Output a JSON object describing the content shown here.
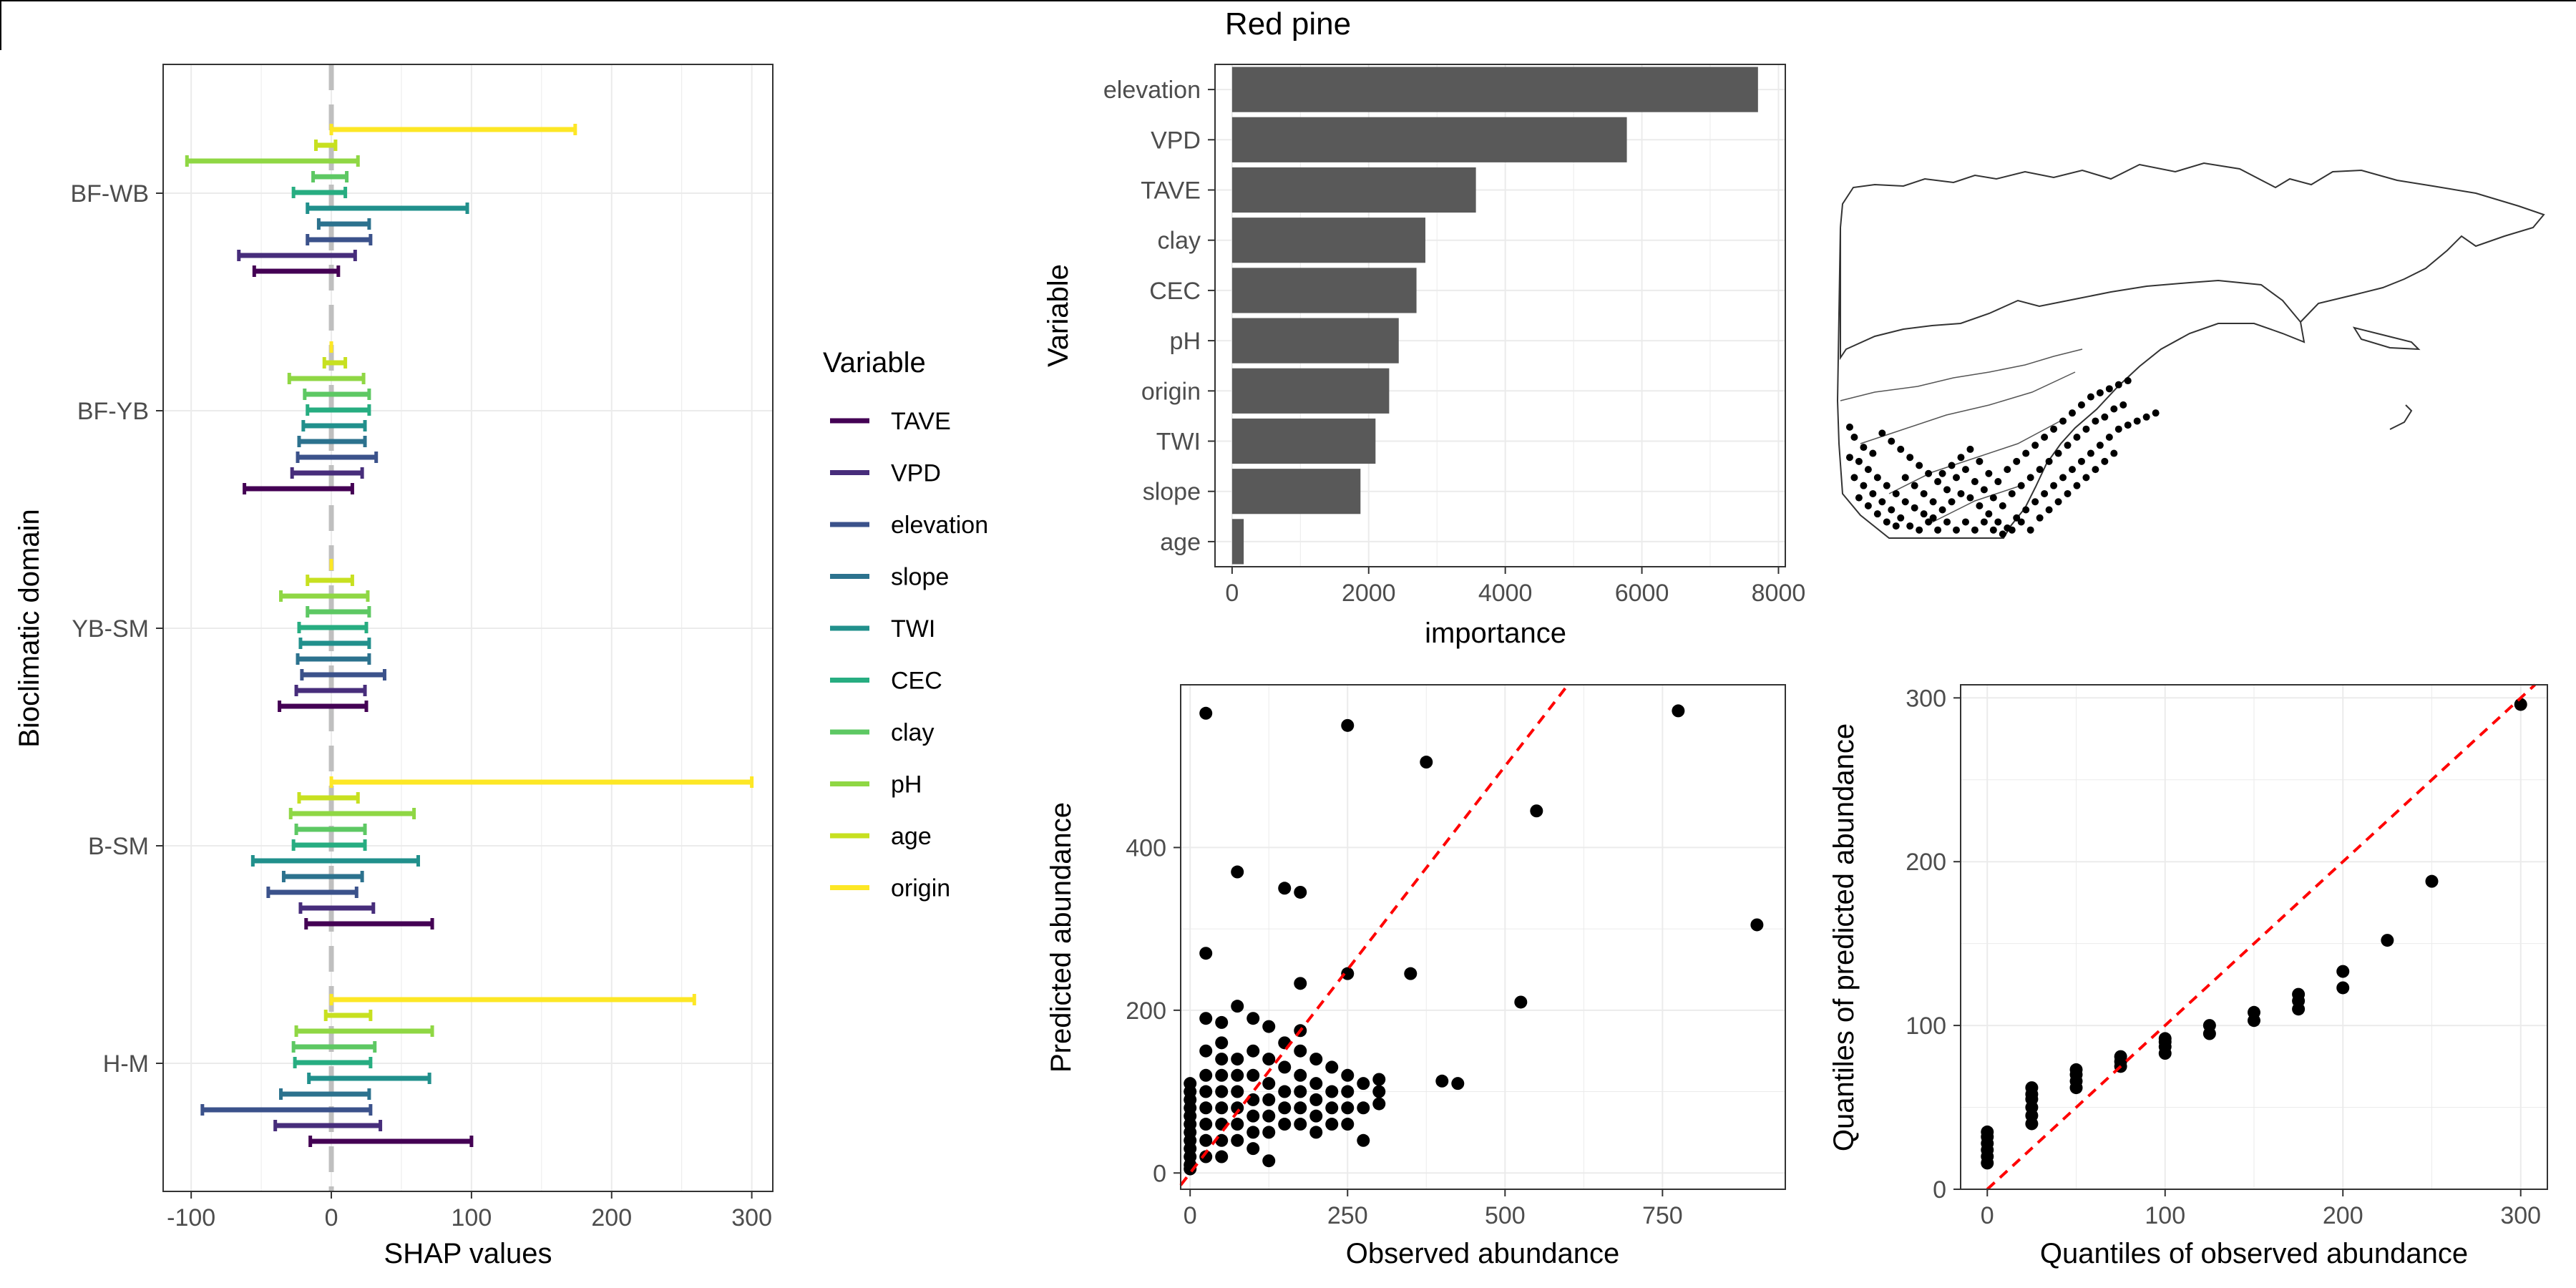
{
  "figure_title": "Red pine",
  "colors": {
    "TAVE": "#440154",
    "VPD": "#472D7B",
    "elevation": "#3B528B",
    "slope": "#2C728E",
    "TWI": "#21908C",
    "CEC": "#27AD81",
    "clay": "#5DC863",
    "pH": "#8FD744",
    "age": "#C7E020",
    "origin": "#FDE725",
    "bar": "#595959",
    "refline": "#FF0000",
    "zero_line": "#BFBFBF",
    "grid": "#EBEBEB"
  },
  "chart_data": [
    {
      "id": "shap",
      "type": "errorbar",
      "title": "",
      "xlabel": "SHAP values",
      "ylabel": "Bioclimatic domain",
      "xlim": [
        -120,
        315
      ],
      "xticks": [
        -100,
        0,
        100,
        200,
        300
      ],
      "categories": [
        "BF-WB",
        "BF-YB",
        "YB-SM",
        "B-SM",
        "H-M"
      ],
      "legend_title": "Variable",
      "legend": [
        "TAVE",
        "VPD",
        "elevation",
        "slope",
        "TWI",
        "CEC",
        "clay",
        "pH",
        "age",
        "origin"
      ],
      "series": [
        {
          "name": "TAVE",
          "ranges": [
            [
              -55,
              5
            ],
            [
              -62,
              15
            ],
            [
              -37,
              25
            ],
            [
              -18,
              72
            ],
            [
              -15,
              100
            ]
          ]
        },
        {
          "name": "VPD",
          "ranges": [
            [
              -66,
              17
            ],
            [
              -28,
              22
            ],
            [
              -25,
              24
            ],
            [
              -22,
              30
            ],
            [
              -40,
              35
            ]
          ]
        },
        {
          "name": "elevation",
          "ranges": [
            [
              -17,
              28
            ],
            [
              -24,
              32
            ],
            [
              -21,
              38
            ],
            [
              -45,
              18
            ],
            [
              -92,
              28
            ]
          ]
        },
        {
          "name": "slope",
          "ranges": [
            [
              -9,
              27
            ],
            [
              -23,
              24
            ],
            [
              -24,
              27
            ],
            [
              -34,
              22
            ],
            [
              -36,
              27
            ]
          ]
        },
        {
          "name": "TWI",
          "ranges": [
            [
              -17,
              97
            ],
            [
              -20,
              24
            ],
            [
              -22,
              27
            ],
            [
              -56,
              62
            ],
            [
              -16,
              70
            ]
          ]
        },
        {
          "name": "CEC",
          "ranges": [
            [
              -27,
              10
            ],
            [
              -17,
              27
            ],
            [
              -23,
              25
            ],
            [
              -27,
              24
            ],
            [
              -26,
              28
            ]
          ]
        },
        {
          "name": "clay",
          "ranges": [
            [
              -13,
              11
            ],
            [
              -19,
              27
            ],
            [
              -17,
              27
            ],
            [
              -25,
              24
            ],
            [
              -27,
              31
            ]
          ]
        },
        {
          "name": "pH",
          "ranges": [
            [
              -103,
              19
            ],
            [
              -30,
              23
            ],
            [
              -36,
              26
            ],
            [
              -29,
              59
            ],
            [
              -25,
              72
            ]
          ]
        },
        {
          "name": "age",
          "ranges": [
            [
              -11,
              3
            ],
            [
              -5,
              10
            ],
            [
              -17,
              15
            ],
            [
              -23,
              19
            ],
            [
              -4,
              28
            ]
          ]
        },
        {
          "name": "origin",
          "ranges": [
            [
              0,
              174
            ],
            [
              0,
              0
            ],
            [
              0,
              0
            ],
            [
              0,
              300
            ],
            [
              0,
              259
            ]
          ]
        }
      ]
    },
    {
      "id": "importance",
      "type": "bar",
      "orientation": "horizontal",
      "xlabel": "importance",
      "ylabel": "Variable",
      "xlim": [
        -250,
        8100
      ],
      "xticks": [
        0,
        2000,
        4000,
        6000,
        8000
      ],
      "categories": [
        "elevation",
        "VPD",
        "TAVE",
        "clay",
        "CEC",
        "pH",
        "origin",
        "TWI",
        "slope",
        "age"
      ],
      "values": [
        7700,
        5780,
        3570,
        2830,
        2700,
        2440,
        2300,
        2100,
        1880,
        170
      ]
    },
    {
      "id": "map",
      "type": "scatter",
      "title": "",
      "points": [
        [
          0.02,
          0.45
        ],
        [
          0.03,
          0.5
        ],
        [
          0.05,
          0.55
        ],
        [
          0.07,
          0.58
        ],
        [
          0.04,
          0.62
        ],
        [
          0.06,
          0.66
        ],
        [
          0.08,
          0.7
        ],
        [
          0.1,
          0.74
        ],
        [
          0.12,
          0.78
        ],
        [
          0.14,
          0.82
        ],
        [
          0.16,
          0.85
        ],
        [
          0.18,
          0.88
        ],
        [
          0.2,
          0.9
        ],
        [
          0.22,
          0.86
        ],
        [
          0.24,
          0.82
        ],
        [
          0.26,
          0.78
        ],
        [
          0.28,
          0.8
        ],
        [
          0.3,
          0.84
        ],
        [
          0.32,
          0.88
        ],
        [
          0.34,
          0.92
        ],
        [
          0.36,
          0.95
        ],
        [
          0.38,
          0.9
        ],
        [
          0.4,
          0.86
        ],
        [
          0.42,
          0.82
        ],
        [
          0.44,
          0.78
        ],
        [
          0.46,
          0.74
        ],
        [
          0.48,
          0.7
        ],
        [
          0.5,
          0.66
        ],
        [
          0.52,
          0.62
        ],
        [
          0.54,
          0.58
        ],
        [
          0.56,
          0.54
        ],
        [
          0.58,
          0.5
        ],
        [
          0.6,
          0.46
        ],
        [
          0.62,
          0.44
        ],
        [
          0.64,
          0.42
        ],
        [
          0.66,
          0.4
        ],
        [
          0.68,
          0.38
        ],
        [
          0.09,
          0.48
        ],
        [
          0.11,
          0.52
        ],
        [
          0.13,
          0.56
        ],
        [
          0.15,
          0.6
        ],
        [
          0.17,
          0.64
        ],
        [
          0.19,
          0.68
        ],
        [
          0.21,
          0.72
        ],
        [
          0.23,
          0.76
        ],
        [
          0.25,
          0.7
        ],
        [
          0.27,
          0.66
        ],
        [
          0.29,
          0.72
        ],
        [
          0.31,
          0.76
        ],
        [
          0.33,
          0.8
        ],
        [
          0.35,
          0.84
        ],
        [
          0.37,
          0.78
        ],
        [
          0.39,
          0.74
        ],
        [
          0.41,
          0.7
        ],
        [
          0.43,
          0.66
        ],
        [
          0.45,
          0.62
        ],
        [
          0.47,
          0.58
        ],
        [
          0.49,
          0.54
        ],
        [
          0.51,
          0.5
        ],
        [
          0.53,
          0.46
        ],
        [
          0.55,
          0.42
        ],
        [
          0.57,
          0.4
        ],
        [
          0.59,
          0.36
        ],
        [
          0.61,
          0.34
        ],
        [
          0.05,
          0.74
        ],
        [
          0.07,
          0.78
        ],
        [
          0.09,
          0.82
        ],
        [
          0.11,
          0.86
        ],
        [
          0.13,
          0.9
        ],
        [
          0.15,
          0.94
        ],
        [
          0.17,
          0.96
        ],
        [
          0.19,
          0.92
        ],
        [
          0.21,
          0.96
        ],
        [
          0.23,
          0.92
        ],
        [
          0.25,
          0.96
        ],
        [
          0.27,
          0.92
        ],
        [
          0.29,
          0.96
        ],
        [
          0.31,
          0.92
        ],
        [
          0.33,
          0.96
        ],
        [
          0.35,
          0.98
        ],
        [
          0.37,
          0.96
        ],
        [
          0.39,
          0.92
        ],
        [
          0.41,
          0.96
        ],
        [
          0.43,
          0.9
        ],
        [
          0.45,
          0.86
        ],
        [
          0.47,
          0.82
        ],
        [
          0.49,
          0.78
        ],
        [
          0.51,
          0.74
        ],
        [
          0.53,
          0.7
        ],
        [
          0.55,
          0.66
        ],
        [
          0.57,
          0.62
        ],
        [
          0.59,
          0.58
        ],
        [
          0.02,
          0.6
        ],
        [
          0.03,
          0.7
        ],
        [
          0.04,
          0.8
        ],
        [
          0.06,
          0.84
        ],
        [
          0.08,
          0.88
        ],
        [
          0.1,
          0.92
        ],
        [
          0.12,
          0.94
        ],
        [
          0.14,
          0.7
        ],
        [
          0.16,
          0.74
        ],
        [
          0.18,
          0.78
        ],
        [
          0.2,
          0.82
        ],
        [
          0.22,
          0.68
        ],
        [
          0.24,
          0.64
        ],
        [
          0.26,
          0.6
        ],
        [
          0.28,
          0.56
        ],
        [
          0.3,
          0.62
        ],
        [
          0.32,
          0.68
        ],
        [
          0.34,
          0.72
        ],
        [
          0.36,
          0.66
        ],
        [
          0.38,
          0.62
        ],
        [
          0.4,
          0.58
        ],
        [
          0.42,
          0.54
        ],
        [
          0.44,
          0.5
        ],
        [
          0.46,
          0.46
        ],
        [
          0.48,
          0.42
        ],
        [
          0.5,
          0.38
        ],
        [
          0.52,
          0.34
        ],
        [
          0.54,
          0.3
        ],
        [
          0.56,
          0.28
        ],
        [
          0.58,
          0.26
        ],
        [
          0.6,
          0.24
        ],
        [
          0.62,
          0.22
        ]
      ]
    },
    {
      "id": "pred_vs_obs",
      "type": "scatter",
      "xlabel": "Observed abundance",
      "ylabel": "Predicted abundance",
      "xlim": [
        -15,
        945
      ],
      "ylim": [
        -20,
        600
      ],
      "xticks": [
        0,
        250,
        500,
        750
      ],
      "yticks": [
        0,
        200,
        400
      ],
      "reference_line": "y = x",
      "points": [
        [
          25,
          565
        ],
        [
          250,
          550
        ],
        [
          775,
          568
        ],
        [
          375,
          505
        ],
        [
          550,
          445
        ],
        [
          75,
          370
        ],
        [
          150,
          350
        ],
        [
          175,
          345
        ],
        [
          900,
          305
        ],
        [
          25,
          270
        ],
        [
          250,
          245
        ],
        [
          350,
          245
        ],
        [
          525,
          210
        ],
        [
          175,
          233
        ],
        [
          400,
          113
        ],
        [
          425,
          110
        ],
        [
          0,
          110
        ],
        [
          0,
          100
        ],
        [
          0,
          90
        ],
        [
          0,
          80
        ],
        [
          0,
          70
        ],
        [
          0,
          60
        ],
        [
          0,
          50
        ],
        [
          0,
          40
        ],
        [
          0,
          30
        ],
        [
          0,
          20
        ],
        [
          0,
          10
        ],
        [
          0,
          5
        ],
        [
          25,
          190
        ],
        [
          25,
          150
        ],
        [
          25,
          120
        ],
        [
          25,
          100
        ],
        [
          25,
          80
        ],
        [
          25,
          60
        ],
        [
          25,
          40
        ],
        [
          25,
          20
        ],
        [
          50,
          185
        ],
        [
          50,
          160
        ],
        [
          50,
          140
        ],
        [
          50,
          120
        ],
        [
          50,
          100
        ],
        [
          50,
          80
        ],
        [
          50,
          60
        ],
        [
          50,
          40
        ],
        [
          50,
          20
        ],
        [
          75,
          205
        ],
        [
          75,
          140
        ],
        [
          75,
          120
        ],
        [
          75,
          100
        ],
        [
          75,
          80
        ],
        [
          75,
          60
        ],
        [
          75,
          40
        ],
        [
          100,
          190
        ],
        [
          100,
          150
        ],
        [
          100,
          120
        ],
        [
          100,
          90
        ],
        [
          100,
          70
        ],
        [
          100,
          50
        ],
        [
          100,
          30
        ],
        [
          125,
          180
        ],
        [
          125,
          140
        ],
        [
          125,
          110
        ],
        [
          125,
          90
        ],
        [
          125,
          70
        ],
        [
          125,
          50
        ],
        [
          125,
          15
        ],
        [
          150,
          160
        ],
        [
          150,
          130
        ],
        [
          150,
          100
        ],
        [
          150,
          80
        ],
        [
          150,
          60
        ],
        [
          175,
          175
        ],
        [
          175,
          150
        ],
        [
          175,
          120
        ],
        [
          175,
          100
        ],
        [
          175,
          80
        ],
        [
          175,
          60
        ],
        [
          200,
          140
        ],
        [
          200,
          110
        ],
        [
          200,
          90
        ],
        [
          200,
          70
        ],
        [
          200,
          50
        ],
        [
          225,
          130
        ],
        [
          225,
          100
        ],
        [
          225,
          80
        ],
        [
          225,
          60
        ],
        [
          250,
          120
        ],
        [
          250,
          100
        ],
        [
          250,
          80
        ],
        [
          250,
          60
        ],
        [
          275,
          110
        ],
        [
          275,
          80
        ],
        [
          275,
          40
        ],
        [
          300,
          115
        ],
        [
          300,
          100
        ],
        [
          300,
          85
        ]
      ]
    },
    {
      "id": "qq",
      "type": "scatter",
      "xlabel": "Quantiles of observed abundance",
      "ylabel": "Quantiles of predicted abundance",
      "xlim": [
        -15,
        315
      ],
      "ylim": [
        0,
        308
      ],
      "xticks": [
        0,
        100,
        200,
        300
      ],
      "yticks": [
        0,
        100,
        200,
        300
      ],
      "reference_line": "y = x",
      "points": [
        [
          0,
          16
        ],
        [
          0,
          20
        ],
        [
          0,
          24
        ],
        [
          0,
          28
        ],
        [
          0,
          32
        ],
        [
          0,
          35
        ],
        [
          25,
          40
        ],
        [
          25,
          45
        ],
        [
          25,
          50
        ],
        [
          25,
          55
        ],
        [
          25,
          58
        ],
        [
          25,
          62
        ],
        [
          50,
          62
        ],
        [
          50,
          66
        ],
        [
          50,
          70
        ],
        [
          50,
          73
        ],
        [
          75,
          75
        ],
        [
          75,
          78
        ],
        [
          75,
          81
        ],
        [
          100,
          83
        ],
        [
          100,
          87
        ],
        [
          100,
          90
        ],
        [
          100,
          92
        ],
        [
          125,
          95
        ],
        [
          125,
          100
        ],
        [
          150,
          103
        ],
        [
          150,
          108
        ],
        [
          175,
          110
        ],
        [
          175,
          115
        ],
        [
          175,
          119
        ],
        [
          200,
          123
        ],
        [
          200,
          133
        ],
        [
          225,
          152
        ],
        [
          250,
          188
        ],
        [
          300,
          296
        ]
      ]
    }
  ]
}
